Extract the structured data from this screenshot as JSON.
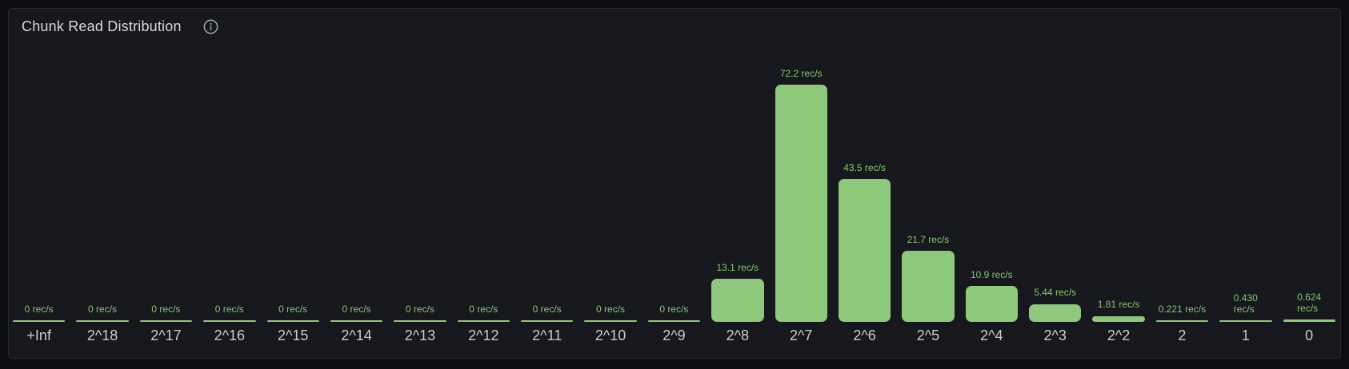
{
  "panel": {
    "title": "Chunk Read Distribution",
    "header_icon": "info-icon"
  },
  "colors": {
    "page_background": "#0d0e11",
    "panel_background": "#17181d",
    "panel_border": "#2a2b30",
    "title_text": "#d8d9dd",
    "bar_fill": "#8dc87b",
    "value_label_text": "#85c56f",
    "axis_label_text": "#caccd2",
    "info_icon": "#9da0a5"
  },
  "chart_data": {
    "type": "bar",
    "title": "Chunk Read Distribution",
    "unit": "rec/s",
    "orientation": "vertical",
    "grid": false,
    "legend": false,
    "y_axis_visible": false,
    "ylim": [
      0,
      76
    ],
    "categories": [
      "+Inf",
      "2^18",
      "2^17",
      "2^16",
      "2^15",
      "2^14",
      "2^13",
      "2^12",
      "2^11",
      "2^10",
      "2^9",
      "2^8",
      "2^7",
      "2^6",
      "2^5",
      "2^4",
      "2^3",
      "2^2",
      "2",
      "1",
      "0"
    ],
    "values": [
      0,
      0,
      0,
      0,
      0,
      0,
      0,
      0,
      0,
      0,
      0,
      13.1,
      72.2,
      43.5,
      21.7,
      10.9,
      5.44,
      1.81,
      0.221,
      0.43,
      0.624
    ],
    "value_labels": [
      "0 rec/s",
      "0 rec/s",
      "0 rec/s",
      "0 rec/s",
      "0 rec/s",
      "0 rec/s",
      "0 rec/s",
      "0 rec/s",
      "0 rec/s",
      "0 rec/s",
      "0 rec/s",
      "13.1 rec/s",
      "72.2 rec/s",
      "43.5 rec/s",
      "21.7 rec/s",
      "10.9 rec/s",
      "5.44 rec/s",
      "1.81 rec/s",
      "0.221 rec/s",
      "0.430\nrec/s",
      "0.624\nrec/s"
    ]
  }
}
